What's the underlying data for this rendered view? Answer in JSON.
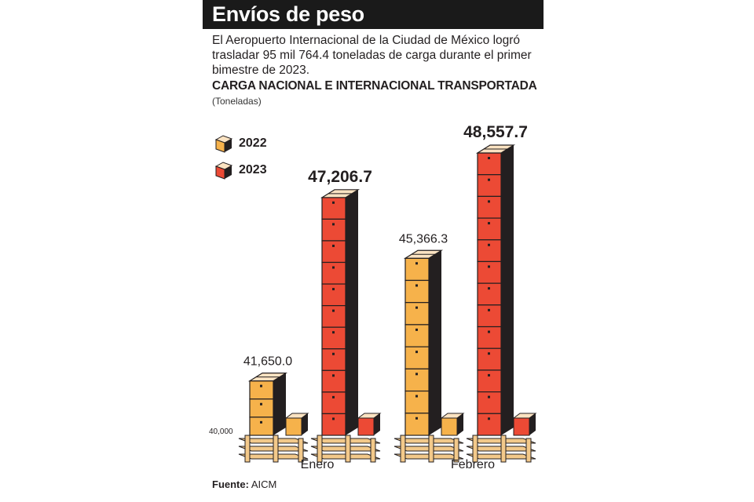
{
  "header": {
    "title": "Envíos de peso"
  },
  "intro": "El Aeropuerto Internacional de la Ciudad de México logró trasladar 95 mil 764.4 toneladas de carga durante el primer bimestre de 2023.",
  "chart_data": {
    "type": "bar",
    "title": "CARGA NACIONAL E INTERNACIONAL TRANSPORTADA",
    "subtitle": "(Toneladas)",
    "categories": [
      "Enero",
      "Febrero"
    ],
    "series": [
      {
        "name": "2022",
        "color": "#f6b24b",
        "values": [
          41650.0,
          45366.3
        ],
        "labels": [
          "41,650.0",
          "45,366.3"
        ]
      },
      {
        "name": "2023",
        "color": "#ec4a35",
        "values": [
          47206.7,
          48557.7
        ],
        "labels": [
          "47,206.7",
          "48,557.7"
        ]
      }
    ],
    "baseline_label": "40,000",
    "ylim": [
      40000,
      48557.7
    ],
    "legend_position": "top-left"
  },
  "source": {
    "label": "Fuente:",
    "value": "AICM"
  },
  "colors": {
    "box_top": "#fbe3c2",
    "box_side": "#231f20",
    "pallet": "#f3c98a",
    "header_bg": "#1a1a1a"
  }
}
